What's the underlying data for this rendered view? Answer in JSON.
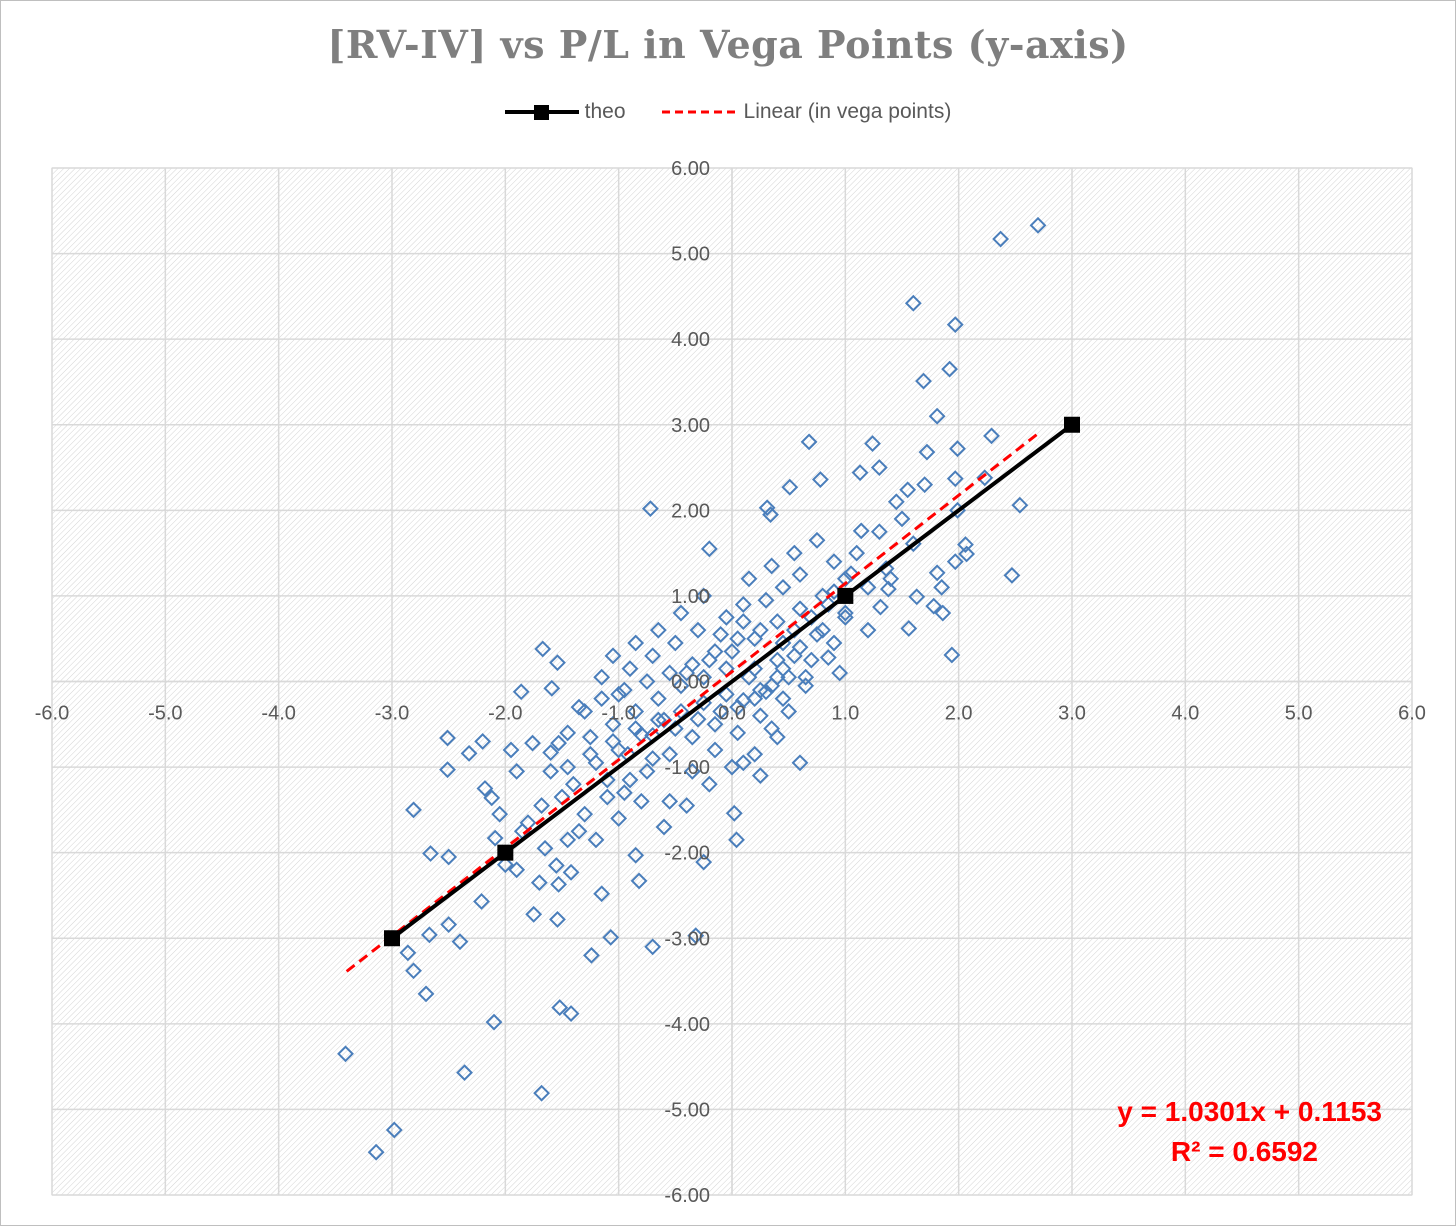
{
  "chart_data": {
    "type": "scatter",
    "title": "[RV-IV] vs P/L in Vega Points (y-axis)",
    "xlabel": "",
    "ylabel": "",
    "xlim": [
      -6,
      6
    ],
    "ylim": [
      -6,
      6
    ],
    "x_ticks": [
      "-6.0",
      "-5.0",
      "-4.0",
      "-3.0",
      "-2.0",
      "-1.0",
      "0.0",
      "1.0",
      "2.0",
      "3.0",
      "4.0",
      "5.0",
      "6.0"
    ],
    "y_ticks": [
      "6.00",
      "5.00",
      "4.00",
      "3.00",
      "2.00",
      "1.00",
      "0.00",
      "-1.00",
      "-2.00",
      "-3.00",
      "-4.00",
      "-5.00",
      "-6.00"
    ],
    "grid": true,
    "legend_position": "top-center",
    "colors": {
      "scatter": "#4a7ebb",
      "theo": "#000000",
      "trend": "#ff0000",
      "title": "#7f7f7f"
    },
    "legend": [
      {
        "label": "theo",
        "style": "black solid line with square markers"
      },
      {
        "label": "Linear (in vega points)",
        "style": "red dashed line"
      }
    ],
    "series": [
      {
        "name": "theo",
        "type": "line",
        "marker": "square",
        "x": [
          -3,
          -2,
          1,
          3
        ],
        "y": [
          -3,
          -2,
          1,
          3
        ]
      },
      {
        "name": "Linear (in vega points)",
        "type": "trendline",
        "slope": 1.0301,
        "intercept": 0.1153,
        "x_range": [
          -3.4,
          2.7
        ]
      },
      {
        "type": "scatter",
        "marker": "diamond-open",
        "points": [
          [
            2.7,
            5.33
          ],
          [
            2.37,
            5.17
          ],
          [
            1.6,
            4.42
          ],
          [
            1.97,
            4.17
          ],
          [
            1.92,
            3.65
          ],
          [
            1.69,
            3.51
          ],
          [
            1.81,
            3.1
          ],
          [
            2.29,
            2.87
          ],
          [
            1.72,
            2.68
          ],
          [
            1.99,
            2.72
          ],
          [
            1.24,
            2.78
          ],
          [
            0.68,
            2.8
          ],
          [
            2.54,
            2.06
          ],
          [
            1.97,
            2.37
          ],
          [
            2.23,
            2.38
          ],
          [
            0.78,
            2.36
          ],
          [
            0.51,
            2.27
          ],
          [
            1.13,
            2.44
          ],
          [
            1.3,
            2.5
          ],
          [
            1.55,
            2.24
          ],
          [
            -0.72,
            2.02
          ],
          [
            0.31,
            2.03
          ],
          [
            0.34,
            1.95
          ],
          [
            1.99,
            2.0
          ],
          [
            2.06,
            1.6
          ],
          [
            2.07,
            1.49
          ],
          [
            1.97,
            1.4
          ],
          [
            2.47,
            1.24
          ],
          [
            1.6,
            1.61
          ],
          [
            1.63,
            0.99
          ],
          [
            1.56,
            0.62
          ],
          [
            1.94,
            0.31
          ],
          [
            1.86,
            0.8
          ],
          [
            1.81,
            1.27
          ],
          [
            1.85,
            1.1
          ],
          [
            1.78,
            0.88
          ],
          [
            1.38,
            1.08
          ],
          [
            1.36,
            1.32
          ],
          [
            1.31,
            0.87
          ],
          [
            1.2,
            0.6
          ],
          [
            1.1,
            1.5
          ],
          [
            1.14,
            1.76
          ],
          [
            1.05,
            1.26
          ],
          [
            1.0,
            0.8
          ],
          [
            0.9,
            1.05
          ],
          [
            -0.2,
            1.55
          ],
          [
            0.95,
            0.1
          ],
          [
            0.85,
            0.28
          ],
          [
            -1.67,
            0.38
          ],
          [
            -1.86,
            -0.12
          ],
          [
            -1.54,
            0.22
          ],
          [
            -1.59,
            -0.08
          ],
          [
            -2.51,
            -0.66
          ],
          [
            -2.32,
            -0.84
          ],
          [
            -2.51,
            -1.03
          ],
          [
            -2.18,
            -1.25
          ],
          [
            -2.12,
            -1.36
          ],
          [
            -2.81,
            -1.5
          ],
          [
            -2.66,
            -2.01
          ],
          [
            -2.5,
            -2.05
          ],
          [
            -2.09,
            -1.83
          ],
          [
            -2.0,
            -2.14
          ],
          [
            -1.9,
            -2.2
          ],
          [
            -2.21,
            -2.57
          ],
          [
            -2.5,
            -2.84
          ],
          [
            -2.67,
            -2.96
          ],
          [
            -2.4,
            -3.04
          ],
          [
            -2.86,
            -3.17
          ],
          [
            -2.81,
            -3.38
          ],
          [
            -2.7,
            -3.65
          ],
          [
            -3.41,
            -4.35
          ],
          [
            -3.14,
            -5.5
          ],
          [
            -2.98,
            -5.24
          ],
          [
            -2.36,
            -4.57
          ],
          [
            -2.1,
            -3.98
          ],
          [
            -1.68,
            -4.81
          ],
          [
            -1.52,
            -3.81
          ],
          [
            -1.42,
            -3.88
          ],
          [
            -1.24,
            -3.2
          ],
          [
            -1.07,
            -2.99
          ],
          [
            -0.7,
            -3.1
          ],
          [
            -0.32,
            -2.97
          ],
          [
            -1.54,
            -2.78
          ],
          [
            -1.75,
            -2.72
          ],
          [
            -1.15,
            -2.48
          ],
          [
            -1.53,
            -2.37
          ],
          [
            -1.42,
            -2.23
          ],
          [
            -0.82,
            -2.33
          ],
          [
            -0.25,
            -2.11
          ],
          [
            0.04,
            -1.85
          ],
          [
            -0.85,
            -2.03
          ],
          [
            0.02,
            -1.54
          ],
          [
            -1.8,
            -1.65
          ],
          [
            -1.68,
            -1.45
          ],
          [
            -1.9,
            -1.05
          ],
          [
            -1.76,
            -0.72
          ],
          [
            -1.6,
            -0.83
          ],
          [
            -1.53,
            -0.72
          ],
          [
            -0.92,
            -0.85
          ],
          [
            -0.7,
            -0.63
          ],
          [
            -0.5,
            -0.55
          ],
          [
            -0.3,
            -0.44
          ],
          [
            -0.1,
            -0.35
          ],
          [
            0.1,
            -0.22
          ],
          [
            0.3,
            -0.12
          ],
          [
            0.5,
            0.05
          ],
          [
            0.7,
            0.25
          ],
          [
            0.9,
            0.45
          ],
          [
            -0.4,
            0.1
          ],
          [
            -0.2,
            0.25
          ],
          [
            0.0,
            0.35
          ],
          [
            0.2,
            0.5
          ],
          [
            0.4,
            0.7
          ],
          [
            0.6,
            0.85
          ],
          [
            0.8,
            1.0
          ],
          [
            -1.2,
            -0.95
          ],
          [
            -1.0,
            -0.8
          ],
          [
            -0.8,
            -0.62
          ],
          [
            -0.6,
            -0.45
          ],
          [
            -1.4,
            -1.2
          ],
          [
            -1.3,
            -1.55
          ],
          [
            -1.1,
            -1.35
          ],
          [
            -0.9,
            -1.15
          ],
          [
            -0.7,
            -0.9
          ],
          [
            -0.55,
            -1.4
          ],
          [
            -0.35,
            -1.05
          ],
          [
            -0.15,
            -0.8
          ],
          [
            0.05,
            -0.6
          ],
          [
            0.25,
            -0.4
          ],
          [
            0.45,
            -0.2
          ],
          [
            0.65,
            0.05
          ],
          [
            -1.05,
            0.3
          ],
          [
            -0.85,
            0.45
          ],
          [
            -0.65,
            0.6
          ],
          [
            -0.45,
            0.8
          ],
          [
            -0.25,
            1.0
          ],
          [
            0.15,
            1.2
          ],
          [
            0.35,
            1.35
          ],
          [
            0.55,
            1.5
          ],
          [
            0.75,
            1.65
          ],
          [
            -0.05,
            0.75
          ],
          [
            0.1,
            0.9
          ],
          [
            0.3,
            0.95
          ],
          [
            0.45,
            1.1
          ],
          [
            0.6,
            1.25
          ],
          [
            -1.3,
            -0.35
          ],
          [
            -1.15,
            -0.2
          ],
          [
            -0.95,
            -0.1
          ],
          [
            -0.75,
            0.0
          ],
          [
            -0.55,
            0.1
          ],
          [
            -0.35,
            0.2
          ],
          [
            -0.15,
            0.35
          ],
          [
            0.05,
            0.5
          ],
          [
            0.25,
            0.6
          ],
          [
            0.45,
            0.45
          ],
          [
            -1.45,
            -0.6
          ],
          [
            -1.25,
            -0.65
          ],
          [
            -1.05,
            -0.5
          ],
          [
            -0.85,
            -0.35
          ],
          [
            -0.65,
            -0.2
          ],
          [
            -0.45,
            -0.05
          ],
          [
            -0.25,
            0.05
          ],
          [
            -0.05,
            0.15
          ],
          [
            0.15,
            0.05
          ],
          [
            0.35,
            -0.05
          ],
          [
            -0.6,
            -1.7
          ],
          [
            -0.4,
            -1.45
          ],
          [
            -0.2,
            -1.2
          ],
          [
            0.0,
            -1.0
          ],
          [
            0.2,
            -0.85
          ],
          [
            0.4,
            -0.65
          ],
          [
            0.6,
            -0.95
          ],
          [
            -1.6,
            -1.05
          ],
          [
            -1.5,
            -1.35
          ],
          [
            -1.35,
            -1.75
          ],
          [
            -1.2,
            -1.85
          ],
          [
            -1.0,
            -1.6
          ],
          [
            -0.8,
            -1.4
          ],
          [
            -1.85,
            -1.75
          ],
          [
            -1.65,
            -1.95
          ],
          [
            -1.45,
            -1.85
          ],
          [
            -1.7,
            -2.35
          ],
          [
            -1.55,
            -2.15
          ],
          [
            -2.05,
            -1.55
          ],
          [
            -1.95,
            -0.8
          ],
          [
            -2.2,
            -0.7
          ],
          [
            -1.35,
            -0.3
          ],
          [
            -1.15,
            0.05
          ],
          [
            -1.0,
            -0.15
          ],
          [
            -0.9,
            0.15
          ],
          [
            -0.7,
            0.3
          ],
          [
            -0.5,
            0.45
          ],
          [
            -0.3,
            0.6
          ],
          [
            -0.1,
            0.55
          ],
          [
            0.1,
            0.7
          ],
          [
            0.2,
            -0.2
          ],
          [
            0.4,
            0.25
          ],
          [
            0.55,
            0.6
          ],
          [
            0.7,
            0.75
          ],
          [
            0.85,
            0.9
          ],
          [
            0.25,
            -1.1
          ],
          [
            0.1,
            -0.95
          ],
          [
            0.35,
            -0.55
          ],
          [
            0.5,
            -0.35
          ],
          [
            0.65,
            -0.05
          ],
          [
            1.2,
            1.1
          ],
          [
            1.4,
            1.2
          ],
          [
            1.5,
            1.9
          ],
          [
            1.3,
            1.75
          ],
          [
            1.45,
            2.1
          ],
          [
            1.7,
            2.3
          ],
          [
            0.9,
            1.4
          ],
          [
            1.0,
            1.2
          ],
          [
            0.75,
            0.55
          ],
          [
            0.55,
            0.3
          ],
          [
            0.4,
            0.05
          ],
          [
            0.2,
            0.15
          ],
          [
            -0.05,
            -0.15
          ],
          [
            -0.25,
            -0.25
          ],
          [
            -0.45,
            -0.35
          ],
          [
            -0.65,
            -0.45
          ],
          [
            -0.85,
            -0.55
          ],
          [
            -1.05,
            -0.7
          ],
          [
            -1.25,
            -0.85
          ],
          [
            -1.45,
            -1.0
          ],
          [
            -1.1,
            -1.15
          ],
          [
            -0.95,
            -1.3
          ],
          [
            -0.75,
            -1.05
          ],
          [
            -0.55,
            -0.85
          ],
          [
            -0.35,
            -0.65
          ],
          [
            -0.15,
            -0.5
          ],
          [
            0.05,
            -0.3
          ],
          [
            0.25,
            -0.1
          ],
          [
            0.45,
            0.15
          ],
          [
            0.6,
            0.4
          ],
          [
            0.8,
            0.6
          ],
          [
            1.0,
            0.75
          ]
        ]
      }
    ],
    "annotations": [
      "y = 1.0301x + 0.1153",
      "R² = 0.6592"
    ]
  }
}
